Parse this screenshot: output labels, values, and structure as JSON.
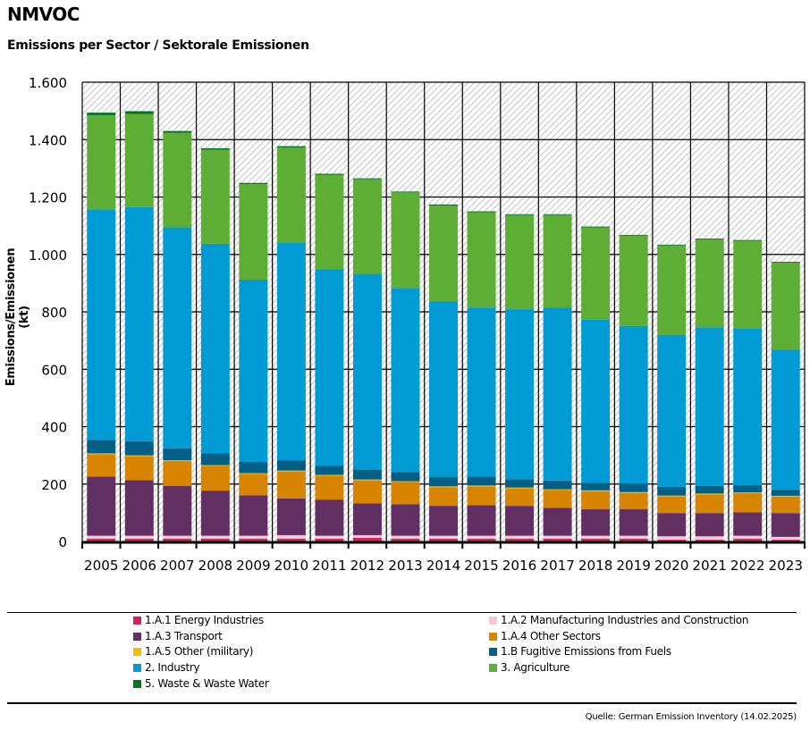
{
  "title": "NMVOC",
  "subtitle": "Emissions per Sector / Sektorale Emissionen",
  "source": "Quelle: German Emission Inventory (14.02.2025)",
  "chart_data": {
    "type": "bar",
    "stacked": true,
    "title": "NMVOC",
    "subtitle": "Emissions per Sector / Sektorale Emissionen",
    "xlabel": "",
    "ylabel": "Emissions/Emissionen (kt)",
    "ylim": [
      0,
      1600
    ],
    "yticks": [
      0,
      200,
      400,
      600,
      800,
      1000,
      1200,
      1400,
      1600
    ],
    "ytick_labels": [
      "0",
      "200",
      "400",
      "600",
      "800",
      "1.000",
      "1.200",
      "1.400",
      "1.600"
    ],
    "grid": true,
    "legend_position": "bottom",
    "categories": [
      "2005",
      "2006",
      "2007",
      "2008",
      "2009",
      "2010",
      "2011",
      "2012",
      "2013",
      "2014",
      "2015",
      "2016",
      "2017",
      "2018",
      "2019",
      "2020",
      "2021",
      "2022",
      "2023"
    ],
    "series": [
      {
        "name": "1.A.1 Energy Industries",
        "color": "#d0245f",
        "values": [
          10,
          10,
          10,
          10,
          10,
          10,
          10,
          13,
          10,
          10,
          10,
          10,
          10,
          10,
          10,
          6,
          6,
          10,
          6
        ]
      },
      {
        "name": "1.A.2 Manufacturing Industries and Construction",
        "color": "#f4c8d8",
        "values": [
          10,
          10,
          10,
          10,
          10,
          12,
          10,
          9,
          10,
          10,
          10,
          10,
          10,
          10,
          10,
          12,
          12,
          10,
          10
        ]
      },
      {
        "name": "1.A.3 Transport",
        "color": "#622f63",
        "values": [
          206,
          194,
          173,
          157,
          141,
          128,
          126,
          111,
          110,
          104,
          106,
          104,
          97,
          92,
          92,
          81,
          81,
          82,
          83
        ]
      },
      {
        "name": "1.A.4 Other Sectors",
        "color": "#d78400",
        "values": [
          78,
          83,
          87,
          86,
          74,
          94,
          83,
          80,
          77,
          65,
          66,
          61,
          62,
          63,
          57,
          58,
          65,
          66,
          57
        ]
      },
      {
        "name": "1.A.5 Other (military)",
        "color": "#fabb00",
        "values": [
          3,
          3,
          3,
          3,
          3,
          3,
          3,
          3,
          3,
          3,
          3,
          3,
          3,
          3,
          3,
          3,
          3,
          3,
          3
        ]
      },
      {
        "name": "1.B Fugitive Emissions from Fuels",
        "color": "#005f85",
        "values": [
          47,
          49,
          41,
          41,
          39,
          36,
          31,
          33,
          32,
          32,
          31,
          29,
          30,
          26,
          30,
          30,
          27,
          25,
          21
        ]
      },
      {
        "name": "2. Industry",
        "color": "#009bd5",
        "values": [
          803,
          816,
          770,
          730,
          635,
          759,
          685,
          683,
          641,
          613,
          589,
          592,
          602,
          569,
          549,
          530,
          552,
          547,
          489
        ]
      },
      {
        "name": "3. Agriculture",
        "color": "#5ead35",
        "values": [
          328,
          324,
          330,
          328,
          333,
          330,
          329,
          330,
          333,
          333,
          332,
          328,
          323,
          321,
          314,
          311,
          306,
          304,
          302
        ]
      },
      {
        "name": "5. Waste & Waste Water",
        "color": "#007626",
        "values": [
          9,
          10,
          6,
          5,
          4,
          5,
          4,
          3,
          3,
          4,
          3,
          3,
          3,
          3,
          3,
          3,
          3,
          3,
          3
        ]
      }
    ]
  }
}
